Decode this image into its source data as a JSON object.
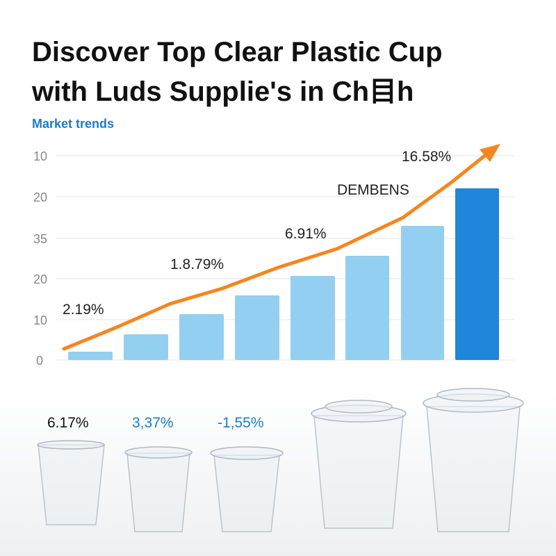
{
  "title_lines": [
    "Discover Top Clear Plastic Cup",
    "with Luds Supplie's in Ch目h"
  ],
  "subtitle": "Market trends",
  "axis_labels": [
    "10",
    "20",
    "35",
    "20",
    "10",
    "0"
  ],
  "annotations": [
    "2.19%",
    "1.8.79%",
    "6.91%",
    "DEMBENS",
    "16.58%"
  ],
  "cup_labels": [
    "6.17%",
    "3,37%",
    "-1,55%"
  ]
}
